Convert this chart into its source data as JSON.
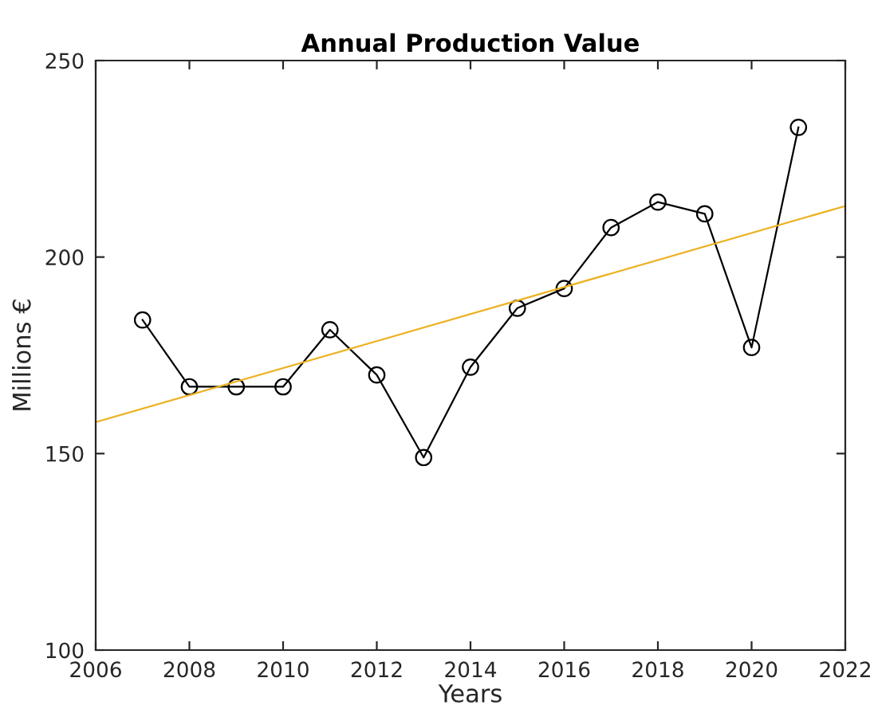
{
  "chart_data": {
    "type": "line",
    "title": "Annual Production Value",
    "xlabel": "Years",
    "ylabel": "Millions €",
    "xlim": [
      2006,
      2022
    ],
    "xticks": [
      2006,
      2008,
      2010,
      2012,
      2014,
      2016,
      2018,
      2020,
      2022
    ],
    "ylim": [
      100,
      250
    ],
    "yticks": [
      100,
      150,
      200,
      250
    ],
    "grid": false,
    "legend": false,
    "series": [
      {
        "color": "#000000",
        "marker": "circle",
        "line_style": "solid",
        "x": [
          2007,
          2008,
          2009,
          2010,
          2011,
          2012,
          2013,
          2014,
          2015,
          2016,
          2017,
          2018,
          2019,
          2020,
          2021
        ],
        "values": [
          184,
          167,
          167,
          167,
          181.5,
          170,
          149,
          172,
          187,
          192,
          207.5,
          214,
          211,
          177,
          233
        ]
      },
      {
        "color": "#edb120",
        "marker": "none",
        "line_style": "solid",
        "x": [
          2006,
          2022
        ],
        "values": [
          158,
          213
        ]
      }
    ]
  }
}
